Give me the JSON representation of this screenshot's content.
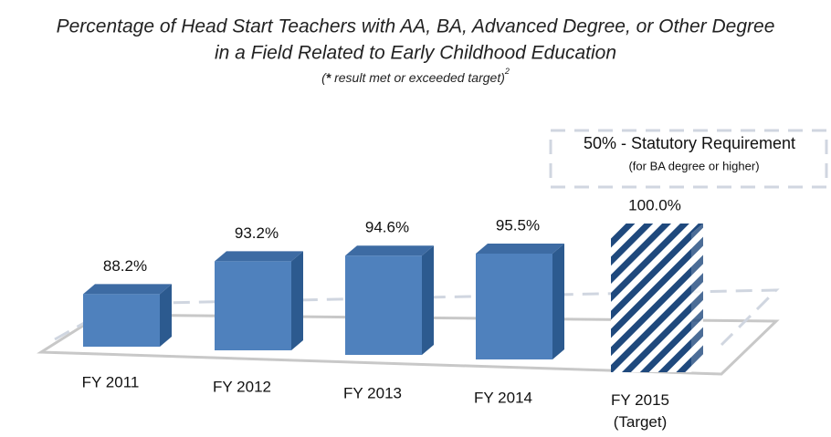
{
  "chart_data": {
    "type": "bar3d",
    "title": [
      "Percentage of Head Start Teachers with AA, BA, Advanced Degree, or Other Degree",
      "in a Field Related to Early Childhood Education"
    ],
    "subtitle": {
      "open": "(",
      "mark": "*",
      "text": " result met or exceeded target)",
      "footnote": "2"
    },
    "categories": [
      "FY 2011",
      "FY 2012",
      "FY 2013",
      "FY 2014",
      "FY 2015\n(Target)"
    ],
    "values": [
      88.2,
      93.2,
      94.6,
      95.5,
      100.0
    ],
    "value_labels": [
      "88.2%",
      "93.2%",
      "94.6%",
      "95.5%",
      "100.0%"
    ],
    "bar_styles": [
      "solid",
      "solid",
      "solid",
      "solid",
      "hatched"
    ],
    "color": "#4f81bd",
    "ylim": [
      81,
      101
    ],
    "annotation": [
      "50% - Statutory Requirement",
      "(for BA degree or higher)"
    ]
  }
}
